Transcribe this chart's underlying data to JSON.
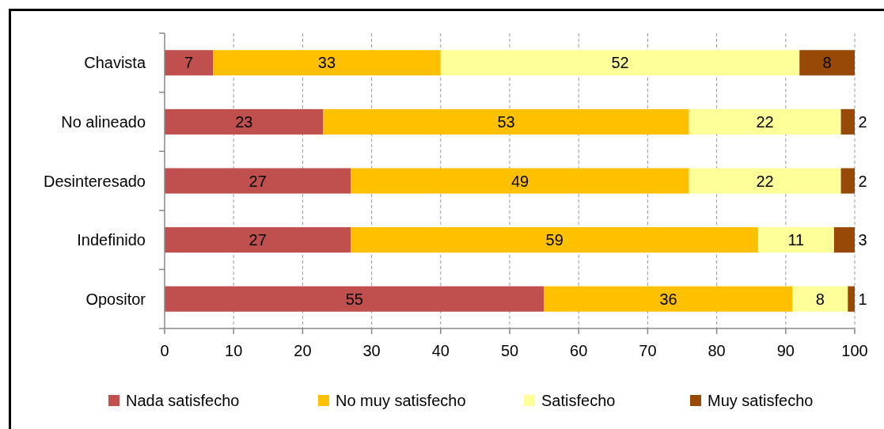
{
  "chart_data": {
    "type": "bar",
    "orientation": "horizontal",
    "stacked": true,
    "categories": [
      "Chavista",
      "No alineado",
      "Desinteresado",
      "Indefinido",
      "Opositor"
    ],
    "series": [
      {
        "name": "Nada satisfecho",
        "color": "#c0504d",
        "values": [
          7,
          23,
          27,
          27,
          55
        ]
      },
      {
        "name": "No muy satisfecho",
        "color": "#ffc000",
        "values": [
          33,
          53,
          49,
          59,
          36
        ]
      },
      {
        "name": "Satisfecho",
        "color": "#ffff99",
        "values": [
          52,
          22,
          22,
          11,
          8
        ]
      },
      {
        "name": "Muy satisfecho",
        "color": "#984807",
        "values": [
          8,
          2,
          2,
          3,
          1
        ]
      }
    ],
    "xlim": [
      0,
      100
    ],
    "xticks": [
      0,
      10,
      20,
      30,
      40,
      50,
      60,
      70,
      80,
      90,
      100
    ],
    "grid": "x",
    "legend": "bottom",
    "data_labels": true
  }
}
